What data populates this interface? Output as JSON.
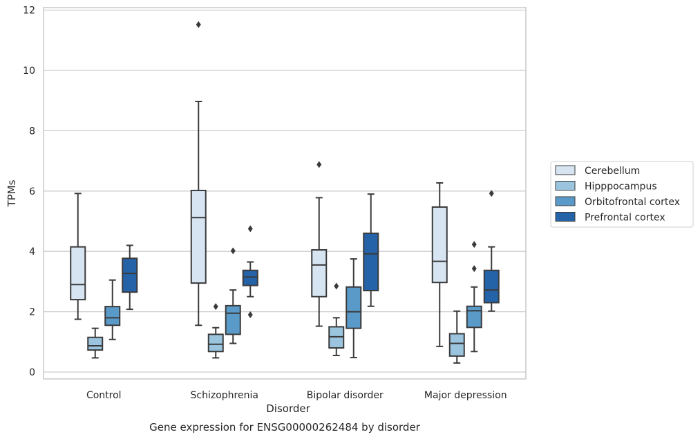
{
  "chart_data": {
    "type": "boxplot",
    "xlabel": "Disorder",
    "ylabel": "TPMs",
    "caption": "Gene expression for ENSG00000262484 by disorder",
    "ylim": [
      -0.2,
      12.15
    ],
    "yticks": [
      0,
      2,
      4,
      6,
      8,
      10,
      12
    ],
    "grid": "horizontal",
    "legend_position": "right",
    "categories": [
      "Control",
      "Schizophrenia",
      "Bipolar disorder",
      "Major depression"
    ],
    "series": [
      {
        "name": "Cerebellum",
        "color": "#d7e5f3",
        "boxes": [
          {
            "whislo": 1.75,
            "q1": 2.4,
            "med": 2.9,
            "q3": 4.15,
            "whishi": 5.92,
            "fliers": []
          },
          {
            "whislo": 1.55,
            "q1": 2.95,
            "med": 5.12,
            "q3": 6.02,
            "whishi": 8.97,
            "fliers": [
              11.52
            ]
          },
          {
            "whislo": 1.52,
            "q1": 2.5,
            "med": 3.55,
            "q3": 4.05,
            "whishi": 5.78,
            "fliers": [
              6.88
            ]
          },
          {
            "whislo": 0.85,
            "q1": 2.97,
            "med": 3.67,
            "q3": 5.47,
            "whishi": 6.27,
            "fliers": []
          }
        ]
      },
      {
        "name": "Hipppocampus",
        "color": "#9bc4de",
        "boxes": [
          {
            "whislo": 0.47,
            "q1": 0.73,
            "med": 0.87,
            "q3": 1.15,
            "whishi": 1.45,
            "fliers": []
          },
          {
            "whislo": 0.47,
            "q1": 0.68,
            "med": 0.92,
            "q3": 1.25,
            "whishi": 1.47,
            "fliers": [
              2.17
            ]
          },
          {
            "whislo": 0.55,
            "q1": 0.8,
            "med": 1.17,
            "q3": 1.5,
            "whishi": 1.8,
            "fliers": [
              2.85
            ]
          },
          {
            "whislo": 0.3,
            "q1": 0.53,
            "med": 0.95,
            "q3": 1.27,
            "whishi": 2.02,
            "fliers": []
          }
        ]
      },
      {
        "name": "Orbitofrontal cortex",
        "color": "#5a9ac8",
        "boxes": [
          {
            "whislo": 1.08,
            "q1": 1.55,
            "med": 1.8,
            "q3": 2.17,
            "whishi": 3.05,
            "fliers": []
          },
          {
            "whislo": 0.95,
            "q1": 1.25,
            "med": 1.95,
            "q3": 2.2,
            "whishi": 2.72,
            "fliers": [
              4.02
            ]
          },
          {
            "whislo": 0.48,
            "q1": 1.45,
            "med": 2.0,
            "q3": 2.82,
            "whishi": 3.75,
            "fliers": []
          },
          {
            "whislo": 0.68,
            "q1": 1.48,
            "med": 2.03,
            "q3": 2.18,
            "whishi": 2.82,
            "fliers": [
              3.43,
              4.23
            ]
          }
        ]
      },
      {
        "name": "Prefrontal cortex",
        "color": "#2563a8",
        "boxes": [
          {
            "whislo": 2.08,
            "q1": 2.65,
            "med": 3.27,
            "q3": 3.77,
            "whishi": 4.2,
            "fliers": []
          },
          {
            "whislo": 2.5,
            "q1": 2.87,
            "med": 3.15,
            "q3": 3.37,
            "whishi": 3.65,
            "fliers": [
              1.9,
              4.75
            ]
          },
          {
            "whislo": 2.18,
            "q1": 2.7,
            "med": 3.92,
            "q3": 4.6,
            "whishi": 5.9,
            "fliers": []
          },
          {
            "whislo": 2.02,
            "q1": 2.3,
            "med": 2.72,
            "q3": 3.37,
            "whishi": 4.15,
            "fliers": [
              5.92
            ]
          }
        ]
      }
    ]
  }
}
